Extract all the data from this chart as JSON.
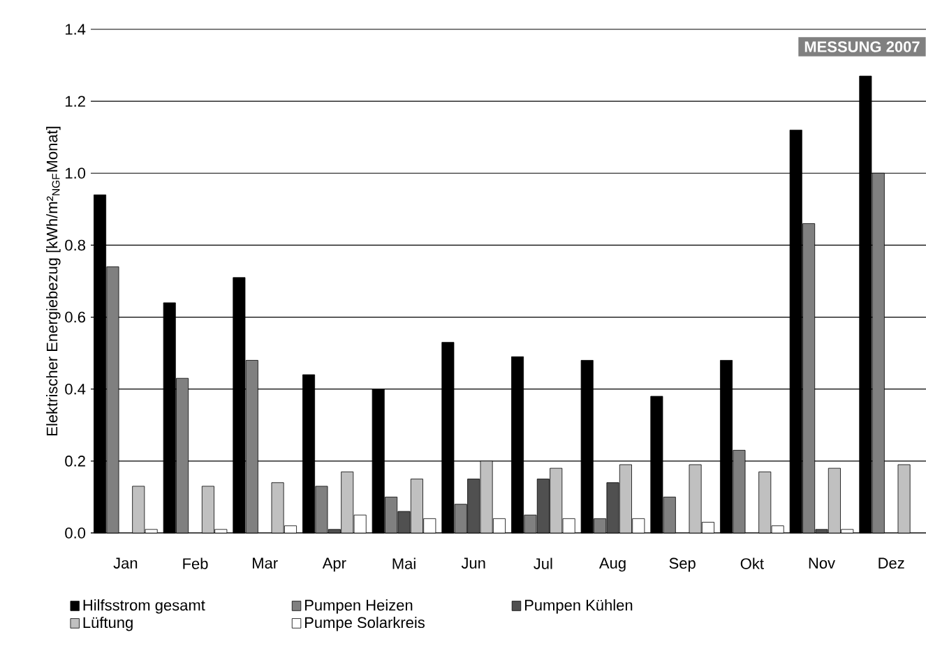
{
  "chart_data": {
    "type": "bar",
    "ylabel": "Elektrischer Energiebezug [kWh/m²$_{NGF}$Monat]",
    "categories": [
      "Jan",
      "Feb",
      "Mar",
      "Apr",
      "Mai",
      "Jun",
      "Jul",
      "Aug",
      "Sep",
      "Okt",
      "Nov",
      "Dez"
    ],
    "series": [
      {
        "name": "Hilfsstrom gesamt",
        "color": "#000000",
        "values": [
          0.94,
          0.64,
          0.71,
          0.44,
          0.4,
          0.53,
          0.49,
          0.48,
          0.38,
          0.48,
          1.12,
          1.27
        ]
      },
      {
        "name": "Pumpen Heizen",
        "color": "#808080",
        "values": [
          0.74,
          0.43,
          0.48,
          0.13,
          0.1,
          0.08,
          0.05,
          0.04,
          0.1,
          0.23,
          0.86,
          1.0
        ]
      },
      {
        "name": "Pumpen Kühlen",
        "color": "#505050",
        "values": [
          null,
          null,
          null,
          0.01,
          0.06,
          0.15,
          0.15,
          0.14,
          null,
          null,
          0.01,
          null
        ]
      },
      {
        "name": "Lüftung",
        "color": "#c0c0c0",
        "values": [
          0.13,
          0.13,
          0.14,
          0.17,
          0.15,
          0.2,
          0.18,
          0.19,
          0.19,
          0.17,
          0.18,
          0.19
        ]
      },
      {
        "name": "Pumpe Solarkreis",
        "color": "#ffffff",
        "values": [
          0.01,
          0.01,
          0.02,
          0.05,
          0.04,
          0.04,
          0.04,
          0.04,
          0.03,
          0.02,
          0.01,
          null
        ]
      }
    ],
    "ylim": [
      0,
      1.4
    ],
    "yticks": [
      {
        "value": 0,
        "label": "0.0"
      },
      {
        "value": 0.2,
        "label": "0.2"
      },
      {
        "value": 0.4,
        "label": "0.4"
      },
      {
        "value": 0.6,
        "label": "0.6"
      },
      {
        "value": 0.8,
        "label": "0.8"
      },
      {
        "value": 1.0,
        "label": "1.0"
      },
      {
        "value": 1.2,
        "label": "1.2"
      },
      {
        "value": 1.4,
        "label": "1.4"
      }
    ],
    "grid": "y",
    "legend": "bottom",
    "annotations": [
      "MESSUNG 2007"
    ]
  }
}
